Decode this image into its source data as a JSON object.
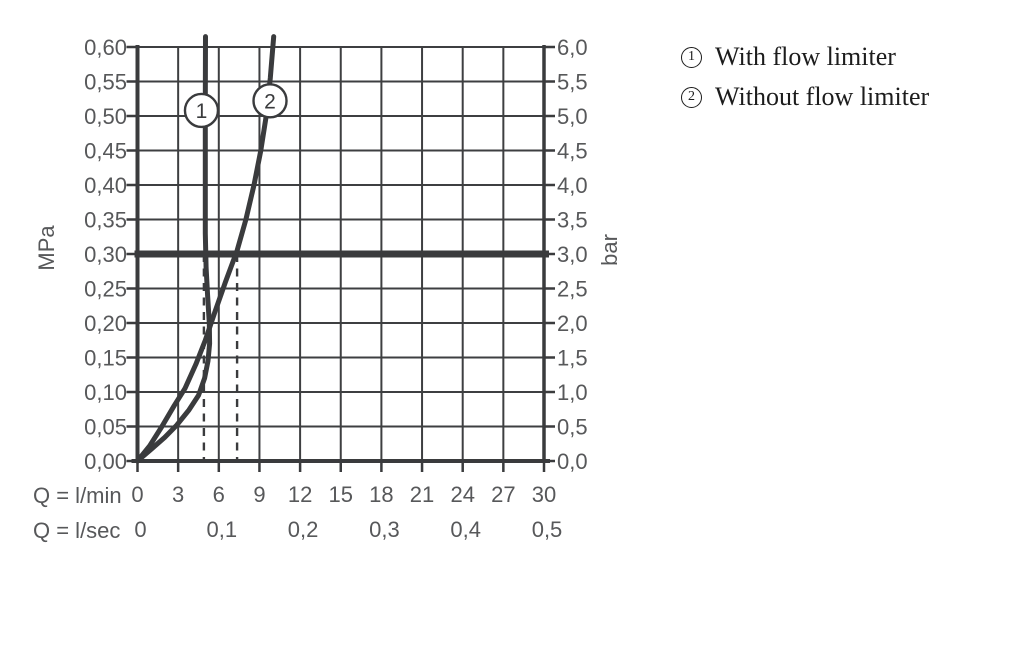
{
  "page": {
    "background": "#ffffff"
  },
  "legend": {
    "items": [
      {
        "ref": "1",
        "label": "With flow limiter"
      },
      {
        "ref": "2",
        "label": "Without flow limiter"
      }
    ]
  },
  "chart_data": {
    "type": "line",
    "title": "",
    "x_axis": {
      "range_lmin": [
        0,
        30
      ],
      "rows": [
        {
          "label": "Q = l/min",
          "ticks": [
            "0",
            "3",
            "6",
            "9",
            "12",
            "15",
            "18",
            "21",
            "24",
            "27",
            "30"
          ],
          "values_lmin": [
            0,
            3,
            6,
            9,
            12,
            15,
            18,
            21,
            24,
            27,
            30
          ]
        },
        {
          "label": "Q = l/sec",
          "ticks": [
            "0",
            "0,1",
            "0,2",
            "0,3",
            "0,4",
            "0,5"
          ],
          "values_lmin": [
            0,
            6,
            12,
            18,
            24,
            30
          ]
        }
      ]
    },
    "y_axis_left": {
      "label": "MPa",
      "range_mpa": [
        0,
        0.6
      ],
      "ticks": [
        "0,60",
        "0,55",
        "0,50",
        "0,45",
        "0,40",
        "0,35",
        "0,30",
        "0,25",
        "0,20",
        "0,15",
        "0,10",
        "0,05",
        "0,00"
      ]
    },
    "y_axis_right": {
      "label": "bar",
      "range_bar": [
        0,
        6.0
      ],
      "ticks": [
        "6,0",
        "5,5",
        "5,0",
        "4,5",
        "4,0",
        "3,5",
        "3,0",
        "2,5",
        "2,0",
        "1,5",
        "1,0",
        "0,5",
        "0,0"
      ]
    },
    "grid": true,
    "legend_position": "right",
    "reference_line": {
      "bar": 3.0
    },
    "dashed_guides_lmin": [
      4.9,
      7.35
    ],
    "series": [
      {
        "ref": "1",
        "name": "With flow limiter",
        "flow_at_3bar_lmin": 4.9,
        "marker_pos": {
          "lmin": 4.72,
          "bar": 5.08
        },
        "points_lmin_bar": [
          [
            0,
            0
          ],
          [
            1.0,
            0.17
          ],
          [
            2.0,
            0.34
          ],
          [
            2.9,
            0.52
          ],
          [
            3.8,
            0.74
          ],
          [
            4.5,
            0.95
          ],
          [
            4.95,
            1.2
          ],
          [
            5.2,
            1.45
          ],
          [
            5.32,
            1.7
          ],
          [
            5.3,
            2.0
          ],
          [
            5.17,
            2.4
          ],
          [
            5.06,
            2.8
          ],
          [
            5.0,
            3.3
          ],
          [
            5.0,
            4.2
          ],
          [
            5.0,
            5.2
          ],
          [
            5.02,
            6.15
          ]
        ]
      },
      {
        "ref": "2",
        "name": "Without flow limiter",
        "flow_at_3bar_lmin": 7.35,
        "marker_pos": {
          "lmin": 9.78,
          "bar": 5.22
        },
        "points_lmin_bar": [
          [
            0,
            0
          ],
          [
            0.9,
            0.22
          ],
          [
            1.8,
            0.5
          ],
          [
            2.7,
            0.8
          ],
          [
            3.5,
            1.05
          ],
          [
            4.3,
            1.4
          ],
          [
            5.0,
            1.75
          ],
          [
            5.7,
            2.15
          ],
          [
            6.5,
            2.6
          ],
          [
            7.35,
            3.05
          ],
          [
            8.0,
            3.5
          ],
          [
            8.6,
            4.0
          ],
          [
            9.1,
            4.5
          ],
          [
            9.5,
            5.0
          ],
          [
            9.8,
            5.55
          ],
          [
            10.05,
            6.15
          ]
        ]
      }
    ],
    "colors": {
      "line": "#3a3b3d",
      "grid": "#3e3f41",
      "tick_text": "#57585a",
      "legend_text": "#1c1c1c",
      "background": "#ffffff"
    }
  }
}
